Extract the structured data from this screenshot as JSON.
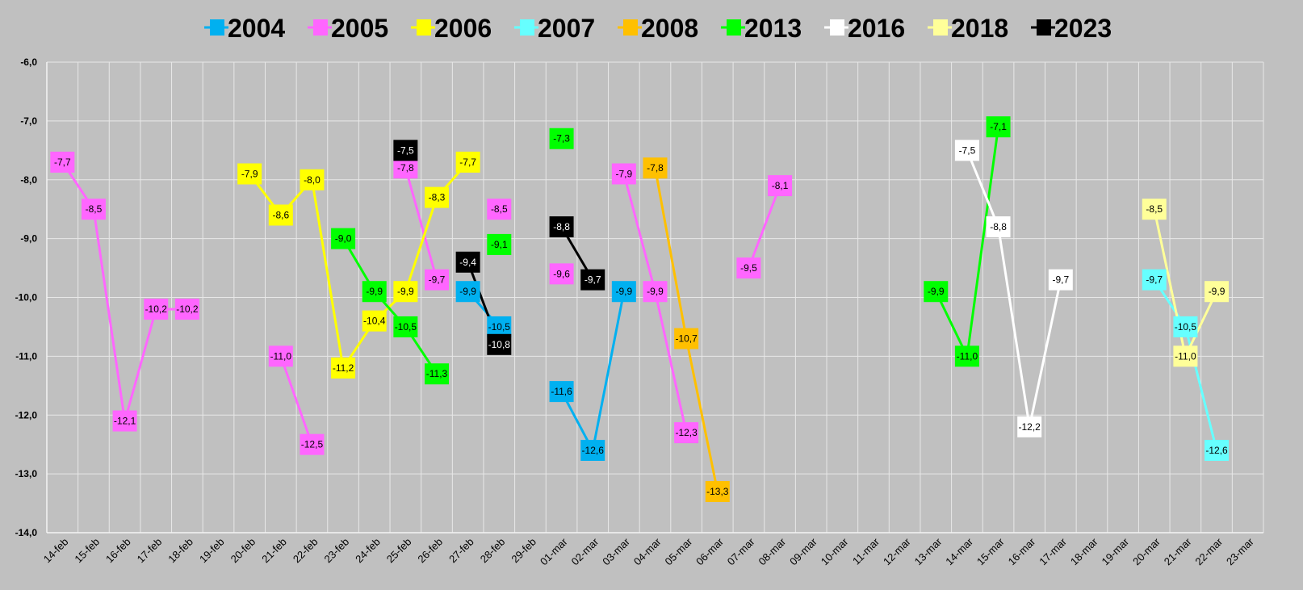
{
  "chart_data": {
    "type": "line",
    "title": "",
    "xlabel": "",
    "ylabel": "",
    "ylim": [
      -14,
      -6
    ],
    "yticks": [
      "-6,0",
      "-7,0",
      "-8,0",
      "-9,0",
      "-10,0",
      "-11,0",
      "-12,0",
      "-13,0",
      "-14,0"
    ],
    "grid": true,
    "legend_position": "top",
    "categories": [
      "14-feb",
      "15-feb",
      "16-feb",
      "17-feb",
      "18-feb",
      "19-feb",
      "20-feb",
      "21-feb",
      "22-feb",
      "23-feb",
      "24-feb",
      "25-feb",
      "26-feb",
      "27-feb",
      "28-feb",
      "29-feb",
      "01-mar",
      "02-mar",
      "03-mar",
      "04-mar",
      "05-mar",
      "06-mar",
      "07-mar",
      "08-mar",
      "09-mar",
      "10-mar",
      "11-mar",
      "12-mar",
      "13-mar",
      "14-mar",
      "15-mar",
      "16-mar",
      "17-mar",
      "18-mar",
      "19-mar",
      "20-mar",
      "21-mar",
      "22-mar",
      "23-mar"
    ],
    "series": [
      {
        "name": "2004",
        "color": "#00b0f0",
        "values": [
          null,
          null,
          null,
          null,
          null,
          null,
          null,
          null,
          null,
          null,
          null,
          null,
          null,
          -9.9,
          -10.5,
          null,
          -11.6,
          -12.6,
          -9.9,
          null,
          null,
          null,
          null,
          null,
          null,
          null,
          null,
          null,
          null,
          null,
          null,
          null,
          null,
          null,
          null,
          null,
          null,
          null,
          null
        ],
        "labels": [
          null,
          null,
          null,
          null,
          null,
          null,
          null,
          null,
          null,
          null,
          null,
          null,
          null,
          "-9,9",
          "-10,5",
          null,
          "-11,6",
          "-12,6",
          "-9,9",
          null,
          null,
          null,
          null,
          null,
          null,
          null,
          null,
          null,
          null,
          null,
          null,
          null,
          null,
          null,
          null,
          null,
          null,
          null,
          null
        ]
      },
      {
        "name": "2005",
        "color": "#ff66ff",
        "values": [
          -7.7,
          -8.5,
          -12.1,
          -10.2,
          -10.2,
          null,
          null,
          -11.0,
          -12.5,
          null,
          null,
          -7.8,
          -9.7,
          null,
          -8.5,
          null,
          -9.6,
          null,
          -7.9,
          -9.9,
          -12.3,
          null,
          -9.5,
          -8.1,
          null,
          null,
          null,
          null,
          null,
          null,
          null,
          null,
          null,
          null,
          null,
          null,
          null,
          null,
          null
        ],
        "labels": [
          "-7,7",
          "-8,5",
          "-12,1",
          "-10,2",
          "-10,2",
          null,
          null,
          "-11,0",
          "-12,5",
          null,
          null,
          "-7,8",
          "-9,7",
          null,
          "-8,5",
          null,
          "-9,6",
          null,
          "-7,9",
          "-9,9",
          "-12,3",
          null,
          "-9,5",
          "-8,1",
          null,
          null,
          null,
          null,
          null,
          null,
          null,
          null,
          null,
          null,
          null,
          null,
          null,
          null,
          null
        ]
      },
      {
        "name": "2006",
        "color": "#ffff00",
        "values": [
          null,
          null,
          null,
          null,
          null,
          null,
          -7.9,
          -8.6,
          -8.0,
          -11.2,
          -10.4,
          -9.9,
          -8.3,
          -7.7,
          null,
          null,
          null,
          null,
          null,
          null,
          null,
          null,
          null,
          null,
          null,
          null,
          null,
          null,
          null,
          null,
          null,
          null,
          null,
          null,
          null,
          null,
          null,
          null,
          null
        ],
        "labels": [
          null,
          null,
          null,
          null,
          null,
          null,
          "-7,9",
          "-8,6",
          "-8,0",
          "-11,2",
          "-10,4",
          "-9,9",
          "-8,3",
          "-7,7",
          null,
          null,
          null,
          null,
          null,
          null,
          null,
          null,
          null,
          null,
          null,
          null,
          null,
          null,
          null,
          null,
          null,
          null,
          null,
          null,
          null,
          null,
          null,
          null,
          null
        ]
      },
      {
        "name": "2007",
        "color": "#66ffff",
        "values": [
          null,
          null,
          null,
          null,
          null,
          null,
          null,
          null,
          null,
          null,
          null,
          null,
          null,
          null,
          null,
          null,
          null,
          null,
          null,
          null,
          null,
          null,
          null,
          null,
          null,
          null,
          null,
          null,
          null,
          null,
          null,
          null,
          null,
          null,
          null,
          -9.7,
          -10.5,
          -12.6,
          null
        ],
        "labels": [
          null,
          null,
          null,
          null,
          null,
          null,
          null,
          null,
          null,
          null,
          null,
          null,
          null,
          null,
          null,
          null,
          null,
          null,
          null,
          null,
          null,
          null,
          null,
          null,
          null,
          null,
          null,
          null,
          null,
          null,
          null,
          null,
          null,
          null,
          null,
          "-9,7",
          "-10,5",
          "-12,6",
          null
        ]
      },
      {
        "name": "2008",
        "color": "#ffc000",
        "values": [
          null,
          null,
          null,
          null,
          null,
          null,
          null,
          null,
          null,
          null,
          null,
          null,
          null,
          null,
          null,
          null,
          null,
          null,
          null,
          -7.8,
          -10.7,
          -13.3,
          null,
          null,
          null,
          null,
          null,
          null,
          null,
          null,
          null,
          null,
          null,
          null,
          null,
          null,
          null,
          null,
          null
        ],
        "labels": [
          null,
          null,
          null,
          null,
          null,
          null,
          null,
          null,
          null,
          null,
          null,
          null,
          null,
          null,
          null,
          null,
          null,
          null,
          null,
          "-7,8",
          "-10,7",
          "-13,3",
          null,
          null,
          null,
          null,
          null,
          null,
          null,
          null,
          null,
          null,
          null,
          null,
          null,
          null,
          null,
          null,
          null
        ]
      },
      {
        "name": "2013",
        "color": "#00ff00",
        "values": [
          null,
          null,
          null,
          null,
          null,
          null,
          null,
          null,
          null,
          -9.0,
          -9.9,
          -10.5,
          -11.3,
          null,
          -9.1,
          null,
          -7.3,
          null,
          null,
          null,
          null,
          null,
          null,
          null,
          null,
          null,
          null,
          null,
          -9.9,
          -11.0,
          -7.1,
          null,
          null,
          null,
          null,
          null,
          null,
          null,
          null
        ],
        "labels": [
          null,
          null,
          null,
          null,
          null,
          null,
          null,
          null,
          null,
          "-9,0",
          "-9,9",
          "-10,5",
          "-11,3",
          null,
          "-9,1",
          null,
          "-7,3",
          null,
          null,
          null,
          null,
          null,
          null,
          null,
          null,
          null,
          null,
          null,
          "-9,9",
          "-11,0",
          "-7,1",
          null,
          null,
          null,
          null,
          null,
          null,
          null,
          null
        ]
      },
      {
        "name": "2016",
        "color": "#ffffff",
        "values": [
          null,
          null,
          null,
          null,
          null,
          null,
          null,
          null,
          null,
          null,
          null,
          null,
          null,
          null,
          null,
          null,
          null,
          null,
          null,
          null,
          null,
          null,
          null,
          null,
          null,
          null,
          null,
          null,
          null,
          -7.5,
          -8.8,
          -12.2,
          -9.7,
          null,
          null,
          null,
          null,
          null,
          null
        ],
        "labels": [
          null,
          null,
          null,
          null,
          null,
          null,
          null,
          null,
          null,
          null,
          null,
          null,
          null,
          null,
          null,
          null,
          null,
          null,
          null,
          null,
          null,
          null,
          null,
          null,
          null,
          null,
          null,
          null,
          null,
          "-7,5",
          "-8,8",
          "-12,2",
          "-9,7",
          null,
          null,
          null,
          null,
          null,
          null
        ]
      },
      {
        "name": "2018",
        "color": "#ffff99",
        "values": [
          null,
          null,
          null,
          null,
          null,
          null,
          null,
          null,
          null,
          null,
          null,
          null,
          null,
          null,
          null,
          null,
          null,
          null,
          null,
          null,
          null,
          null,
          null,
          null,
          null,
          null,
          null,
          null,
          null,
          null,
          null,
          null,
          null,
          null,
          null,
          -8.5,
          -11.0,
          -9.9,
          null
        ],
        "labels": [
          null,
          null,
          null,
          null,
          null,
          null,
          null,
          null,
          null,
          null,
          null,
          null,
          null,
          null,
          null,
          null,
          null,
          null,
          null,
          null,
          null,
          null,
          null,
          null,
          null,
          null,
          null,
          null,
          null,
          null,
          null,
          null,
          null,
          null,
          null,
          "-8,5",
          "-11,0",
          "-9,9",
          null
        ]
      },
      {
        "name": "2023",
        "color": "#000000",
        "values": [
          null,
          null,
          null,
          null,
          null,
          null,
          null,
          null,
          null,
          null,
          null,
          -7.5,
          null,
          -9.4,
          -10.8,
          null,
          -8.8,
          -9.7,
          null,
          null,
          null,
          null,
          null,
          null,
          null,
          null,
          null,
          null,
          null,
          null,
          null,
          null,
          null,
          null,
          null,
          null,
          null,
          null,
          null
        ],
        "labels": [
          null,
          null,
          null,
          null,
          null,
          null,
          null,
          null,
          null,
          null,
          null,
          "-7,5",
          null,
          "-9,4",
          "-10,8",
          null,
          "-8,8",
          "-9,7",
          null,
          null,
          null,
          null,
          null,
          null,
          null,
          null,
          null,
          null,
          null,
          null,
          null,
          null,
          null,
          null,
          null,
          null,
          null,
          null,
          null
        ]
      }
    ]
  }
}
